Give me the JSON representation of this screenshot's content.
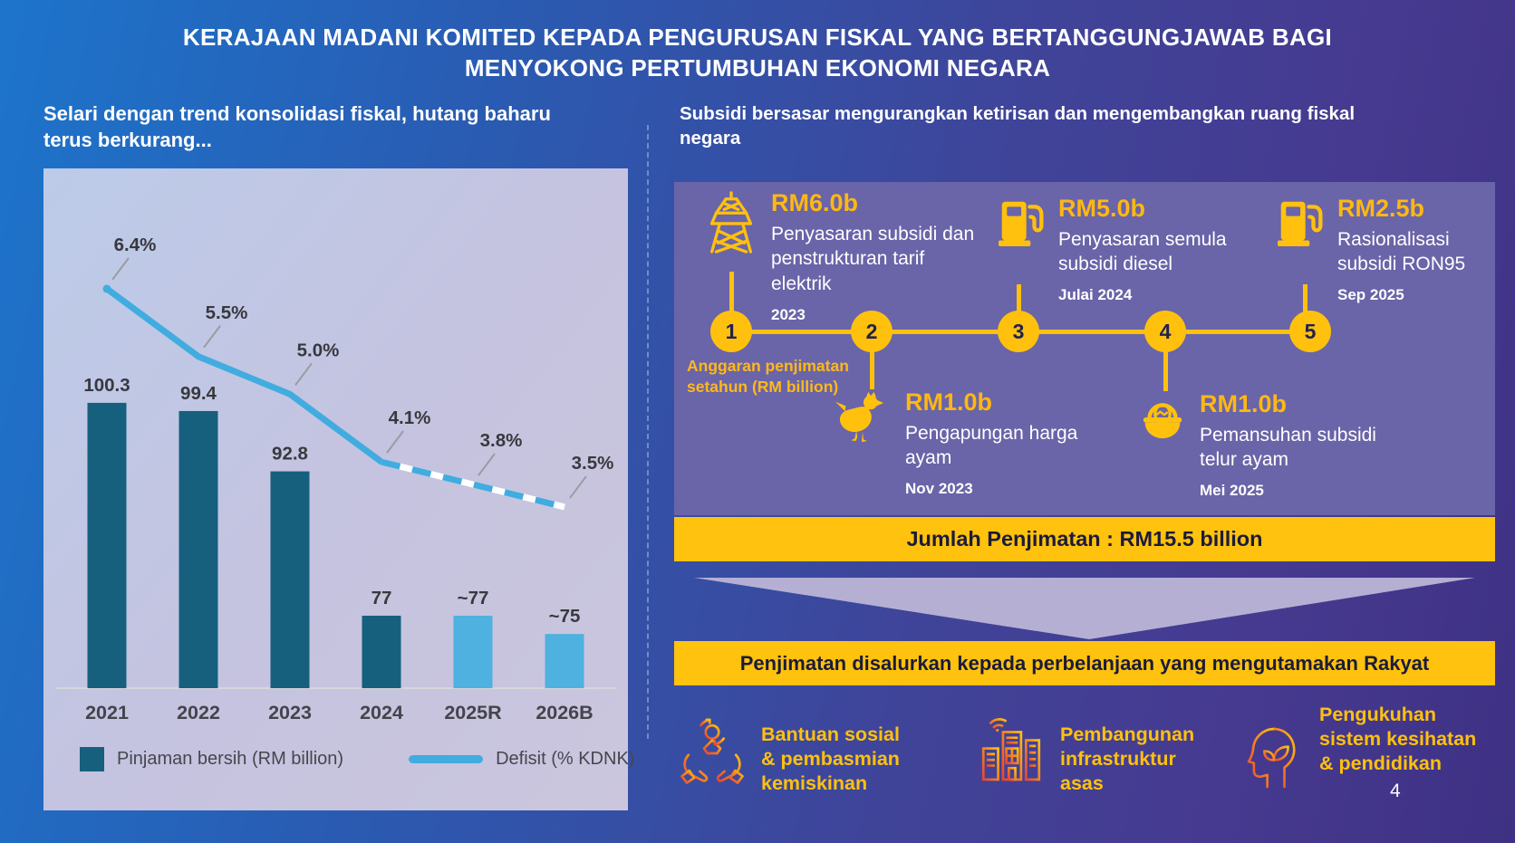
{
  "slide": {
    "title_lines": [
      "KERAJAAN MADANI KOMITED KEPADA PENGURUSAN FISKAL YANG BERTANGGUNGJAWAB BAGI",
      "MENYOKONG PERTUMBUHAN EKONOMI NEGARA"
    ],
    "page_number": "4"
  },
  "left_section": {
    "heading": "Selari dengan trend konsolidasi fiskal, hutang baharu terus berkurang..."
  },
  "chart_data": {
    "type": "combo",
    "categories": [
      "2021",
      "2022",
      "2023",
      "2024",
      "2025R",
      "2026B"
    ],
    "series": [
      {
        "name": "Pinjaman bersih (RM billion)",
        "type": "bar",
        "values": [
          100.3,
          99.4,
          92.8,
          77,
          77,
          75
        ],
        "value_labels": [
          "100.3",
          "99.4",
          "92.8",
          "77",
          "~77",
          "~75"
        ],
        "bar_styles": [
          "dark",
          "dark",
          "dark",
          "dark",
          "light",
          "light"
        ]
      },
      {
        "name": "Defisit (% KDNK)",
        "type": "line",
        "values": [
          6.4,
          5.5,
          5.0,
          4.1,
          3.8,
          3.5
        ],
        "value_labels": [
          "6.4%",
          "5.5%",
          "5.0%",
          "4.1%",
          "3.8%",
          "3.5%"
        ],
        "dashed_from_index": 3
      }
    ],
    "legend_labels": [
      "Pinjaman bersih (RM billion)",
      "Defisit (% KDNK)"
    ],
    "xlabel": "",
    "ylabel": "",
    "grid": false,
    "legend_position": "bottom"
  },
  "right_section": {
    "heading": "Subsidi bersasar mengurangkan ketirisan dan mengembangkan ruang fiskal negara",
    "axis_note": "Anggaran penjimatan setahun (RM billion)",
    "timeline": [
      {
        "num": "1",
        "icon": "electricity-pylon",
        "amount": "RM6.0b",
        "desc": "Penyasaran subsidi dan penstrukturan tarif elektrik",
        "date": "2023",
        "position": "top"
      },
      {
        "num": "2",
        "icon": "chicken",
        "amount": "RM1.0b",
        "desc": "Pengapungan harga ayam",
        "date": "Nov 2023",
        "position": "bottom"
      },
      {
        "num": "3",
        "icon": "fuel-pump",
        "amount": "RM5.0b",
        "desc": "Penyasaran semula subsidi diesel",
        "date": "Julai 2024",
        "position": "top"
      },
      {
        "num": "4",
        "icon": "egg-basket",
        "amount": "RM1.0b",
        "desc": "Pemansuhan subsidi telur ayam",
        "date": "Mei 2025",
        "position": "bottom"
      },
      {
        "num": "5",
        "icon": "fuel-pump",
        "amount": "RM2.5b",
        "desc": "Rasionalisasi subsidi RON95",
        "date": "Sep 2025",
        "position": "top"
      }
    ],
    "total_banner": "Jumlah Penjimatan : RM15.5 billion",
    "allocation_banner": "Penjimatan disalurkan kepada perbelanjaan yang mengutamakan Rakyat",
    "beneficiaries": [
      {
        "icon": "hands-person",
        "lines": [
          "Bantuan sosial",
          "& pembasmian",
          "kemiskinan"
        ]
      },
      {
        "icon": "buildings",
        "lines": [
          "Pembangunan",
          "infrastruktur",
          "asas"
        ]
      },
      {
        "icon": "head-leaves",
        "lines": [
          "Pengukuhan",
          "sistem kesihatan",
          "& pendidikan"
        ]
      }
    ]
  },
  "colors": {
    "background_blue": "#1D74CB",
    "background_purple": "#3E3184",
    "chart_panel_light": "#C3C6E0",
    "bar_dark": "#16607E",
    "bar_light": "#4FB1DF",
    "line_blue": "#41ACDF",
    "timeline_panel": "#6A64A8",
    "gold": "#FFC10E",
    "gold_text": "#FDB813",
    "banner_text": "#1B1B3A",
    "chevron": "#B5AFD4",
    "label_gray": "#3C3C44"
  }
}
